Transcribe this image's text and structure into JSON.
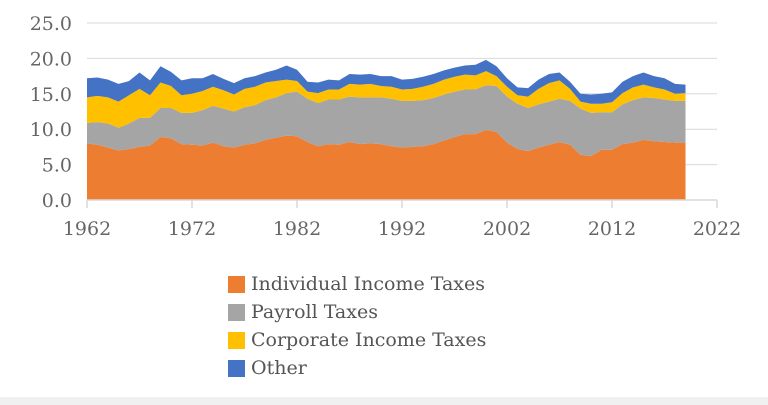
{
  "chart_data": {
    "type": "area",
    "stacked": true,
    "title": "",
    "xlabel": "",
    "ylabel": "",
    "xlim": [
      1962,
      2022
    ],
    "ylim": [
      0,
      25
    ],
    "xticks": [
      "1962",
      "1972",
      "1982",
      "1992",
      "2002",
      "2012",
      "2022"
    ],
    "yticks": [
      "0.0",
      "5.0",
      "10.0",
      "15.0",
      "20.0",
      "25.0"
    ],
    "grid": "horizontal",
    "legend_position": "bottom",
    "x": [
      1962,
      1963,
      1964,
      1965,
      1966,
      1967,
      1968,
      1969,
      1970,
      1971,
      1972,
      1973,
      1974,
      1975,
      1976,
      1977,
      1978,
      1979,
      1980,
      1981,
      1982,
      1983,
      1984,
      1985,
      1986,
      1987,
      1988,
      1989,
      1990,
      1991,
      1992,
      1993,
      1994,
      1995,
      1996,
      1997,
      1998,
      1999,
      2000,
      2001,
      2002,
      2003,
      2004,
      2005,
      2006,
      2007,
      2008,
      2009,
      2010,
      2011,
      2012,
      2013,
      2014,
      2015,
      2016,
      2017,
      2018,
      2019
    ],
    "series": [
      {
        "name": "Individual Income Taxes",
        "color": "#ed7d31",
        "values": [
          8.0,
          7.8,
          7.4,
          7.0,
          7.2,
          7.5,
          7.7,
          8.9,
          8.7,
          7.9,
          7.8,
          7.7,
          8.1,
          7.6,
          7.4,
          7.8,
          8.0,
          8.5,
          8.8,
          9.1,
          9.0,
          8.2,
          7.6,
          7.9,
          7.8,
          8.2,
          7.9,
          8.0,
          7.9,
          7.6,
          7.4,
          7.5,
          7.6,
          7.9,
          8.4,
          8.9,
          9.3,
          9.3,
          9.9,
          9.6,
          8.1,
          7.2,
          6.9,
          7.4,
          7.8,
          8.2,
          7.8,
          6.4,
          6.2,
          7.1,
          7.1,
          7.9,
          8.1,
          8.5,
          8.3,
          8.2,
          8.1,
          8.1
        ]
      },
      {
        "name": "Payroll Taxes",
        "color": "#a5a5a5",
        "values": [
          2.9,
          3.2,
          3.4,
          3.2,
          3.6,
          4.1,
          3.9,
          4.1,
          4.3,
          4.4,
          4.5,
          5.0,
          5.2,
          5.3,
          5.1,
          5.3,
          5.4,
          5.6,
          5.7,
          6.0,
          6.3,
          6.1,
          6.1,
          6.3,
          6.4,
          6.4,
          6.6,
          6.5,
          6.6,
          6.7,
          6.6,
          6.5,
          6.5,
          6.5,
          6.5,
          6.4,
          6.3,
          6.3,
          6.3,
          6.5,
          6.5,
          6.4,
          6.1,
          6.1,
          6.1,
          6.1,
          6.2,
          6.5,
          6.1,
          5.3,
          5.3,
          5.6,
          6.0,
          6.0,
          6.1,
          6.0,
          5.9,
          5.9
        ]
      },
      {
        "name": "Corporate Income Taxes",
        "color": "#ffc000",
        "values": [
          3.6,
          3.7,
          3.7,
          3.7,
          4.0,
          4.1,
          3.2,
          3.6,
          3.1,
          2.5,
          2.7,
          2.7,
          2.7,
          2.6,
          2.4,
          2.6,
          2.6,
          2.5,
          2.3,
          1.9,
          1.5,
          1.0,
          1.4,
          1.4,
          1.4,
          1.8,
          1.8,
          1.9,
          1.6,
          1.7,
          1.6,
          1.7,
          1.9,
          2.0,
          2.1,
          2.1,
          2.1,
          2.0,
          2.0,
          1.4,
          1.4,
          1.2,
          1.6,
          2.2,
          2.6,
          2.6,
          1.7,
          1.0,
          1.3,
          1.2,
          1.4,
          1.6,
          1.8,
          1.8,
          1.5,
          1.4,
          1.0,
          1.1
        ]
      },
      {
        "name": "Other",
        "color": "#4472c4",
        "values": [
          2.7,
          2.6,
          2.5,
          2.5,
          2.0,
          2.3,
          2.1,
          2.3,
          2.0,
          2.1,
          2.2,
          1.8,
          1.8,
          1.6,
          1.6,
          1.5,
          1.5,
          1.4,
          1.6,
          2.0,
          1.6,
          1.4,
          1.5,
          1.4,
          1.3,
          1.4,
          1.4,
          1.4,
          1.4,
          1.5,
          1.4,
          1.4,
          1.4,
          1.4,
          1.3,
          1.3,
          1.3,
          1.5,
          1.6,
          1.4,
          1.2,
          1.1,
          1.2,
          1.3,
          1.3,
          1.1,
          1.0,
          1.1,
          1.3,
          1.4,
          1.4,
          1.6,
          1.6,
          1.7,
          1.6,
          1.6,
          1.4,
          1.2
        ]
      }
    ]
  }
}
